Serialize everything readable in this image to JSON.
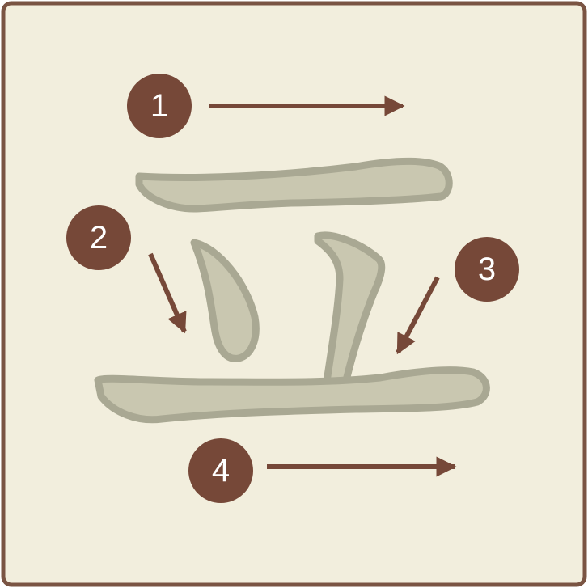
{
  "colors": {
    "background": "#f2eedd",
    "frame": "#7a5443",
    "stroke_fill": "#c9c7b0",
    "stroke_outline": "#a9a893",
    "marker": "#764838"
  },
  "steps": [
    {
      "number": "1",
      "direction": "right"
    },
    {
      "number": "2",
      "direction": "down-right"
    },
    {
      "number": "3",
      "direction": "down-left"
    },
    {
      "number": "4",
      "direction": "right"
    }
  ]
}
